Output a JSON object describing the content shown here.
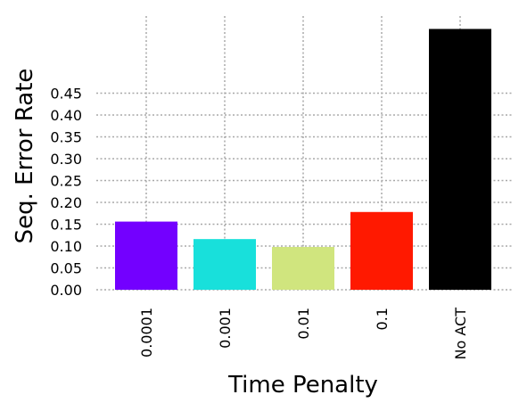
{
  "chart_data": {
    "type": "bar",
    "title": "",
    "xlabel": "Time Penalty",
    "ylabel": "Seq. Error Rate",
    "categories": [
      "0.0001",
      "0.001",
      "0.01",
      "0.1",
      "No ACT"
    ],
    "values": [
      0.156,
      0.116,
      0.098,
      0.178,
      0.597
    ],
    "colors": [
      "#7300ff",
      "#18e0db",
      "#d0e57e",
      "#ff1900",
      "#000000"
    ],
    "yticks": [
      0.0,
      0.05,
      0.1,
      0.15,
      0.2,
      0.25,
      0.3,
      0.35,
      0.4,
      0.45
    ],
    "ylim": [
      0,
      0.63
    ],
    "grid": true,
    "legend": false
  }
}
